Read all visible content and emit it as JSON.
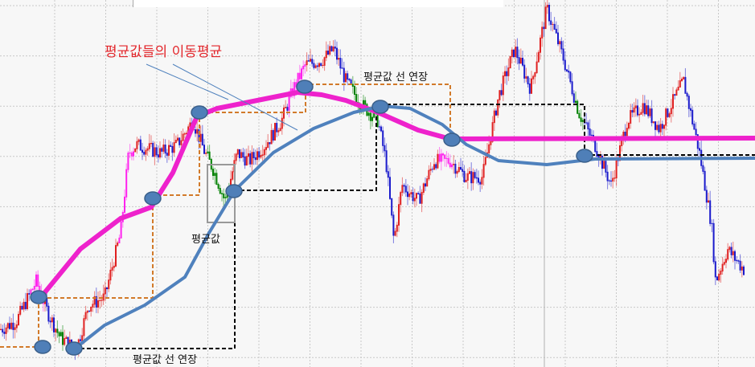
{
  "chart_data": {
    "type": "line",
    "title": "",
    "xlabel": "",
    "ylabel": "",
    "grid": true,
    "annotations": {
      "ma_of_averages": "평균값들의 이동평균",
      "extend_top": "평균값 선 연장",
      "average": "평균값",
      "extend_bottom": "평균값 선 연장"
    },
    "price_path": [
      [
        0,
        47
      ],
      [
        20,
        57
      ],
      [
        45,
        107
      ],
      [
        60,
        67
      ],
      [
        75,
        37
      ],
      [
        95,
        22
      ],
      [
        110,
        77
      ],
      [
        130,
        87
      ],
      [
        150,
        167
      ],
      [
        160,
        267
      ],
      [
        170,
        277
      ],
      [
        200,
        267
      ],
      [
        220,
        277
      ],
      [
        240,
        307
      ],
      [
        255,
        267
      ],
      [
        265,
        247
      ],
      [
        280,
        207
      ],
      [
        295,
        267
      ],
      [
        310,
        257
      ],
      [
        330,
        277
      ],
      [
        350,
        307
      ],
      [
        365,
        347
      ],
      [
        380,
        377
      ],
      [
        400,
        382
      ],
      [
        415,
        397
      ],
      [
        430,
        357
      ],
      [
        450,
        327
      ],
      [
        470,
        307
      ],
      [
        480,
        257
      ],
      [
        490,
        157
      ],
      [
        500,
        227
      ],
      [
        520,
        207
      ],
      [
        540,
        257
      ],
      [
        560,
        257
      ],
      [
        580,
        237
      ],
      [
        600,
        237
      ],
      [
        620,
        337
      ],
      [
        640,
        397
      ],
      [
        660,
        347
      ],
      [
        680,
        447
      ],
      [
        700,
        387
      ],
      [
        720,
        317
      ],
      [
        740,
        277
      ],
      [
        760,
        227
      ],
      [
        780,
        307
      ],
      [
        800,
        327
      ],
      [
        820,
        297
      ],
      [
        850,
        357
      ],
      [
        870,
        267
      ],
      [
        885,
        177
      ],
      [
        890,
        107
      ],
      [
        905,
        147
      ],
      [
        925,
        122
      ]
    ],
    "series": [
      {
        "color": "#ee22cc",
        "points": [
          [
            55,
            92
          ],
          [
            100,
            147
          ],
          [
            150,
            185
          ],
          [
            188,
            199
          ],
          [
            215,
            242
          ],
          [
            245,
            312
          ],
          [
            270,
            322
          ],
          [
            320,
            332
          ],
          [
            370,
            342
          ],
          [
            400,
            339
          ],
          [
            430,
            332
          ],
          [
            470,
            317
          ],
          [
            520,
            295
          ],
          [
            560,
            284
          ],
          [
            939,
            285
          ]
        ]
      },
      {
        "color": "#4f81bd",
        "points": [
          [
            92,
            22
          ],
          [
            130,
            52
          ],
          [
            180,
            77
          ],
          [
            230,
            112
          ],
          [
            260,
            167
          ],
          [
            292,
            220
          ],
          [
            340,
            267
          ],
          [
            390,
            297
          ],
          [
            440,
            317
          ],
          [
            475,
            325
          ],
          [
            510,
            322
          ],
          [
            550,
            302
          ],
          [
            580,
            277
          ],
          [
            620,
            257
          ],
          [
            680,
            252
          ],
          [
            740,
            259
          ],
          [
            939,
            260
          ]
        ]
      }
    ],
    "average_points": [
      [
        48,
        87
      ],
      [
        53,
        25
      ],
      [
        92,
        23
      ],
      [
        190,
        210
      ],
      [
        248,
        317
      ],
      [
        291,
        219
      ],
      [
        379,
        349
      ],
      [
        473,
        324
      ],
      [
        562,
        283
      ],
      [
        727,
        263
      ]
    ],
    "colors": {
      "up": "#e02020",
      "down": "#1a1acc",
      "highlight": "#ff22ee",
      "fall": "#008000",
      "avg_box": "#d27a2a",
      "ext_box": "#000000",
      "marker": "#4f7fb8"
    }
  }
}
